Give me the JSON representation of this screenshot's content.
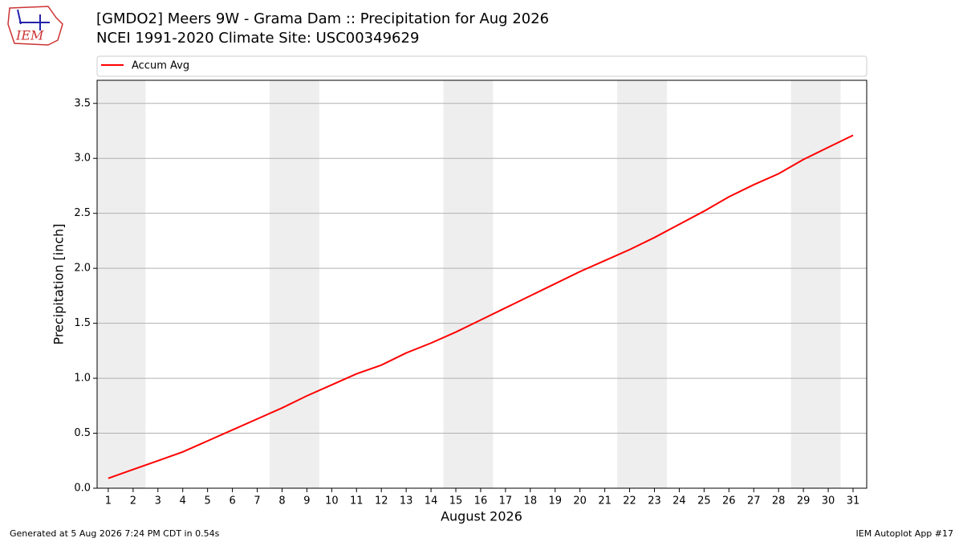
{
  "logo": "IEM",
  "footer": {
    "left": "Generated at 5 Aug 2026 7:24 PM CDT in 0.54s",
    "right": "IEM Autoplot App #17"
  },
  "chart_data": {
    "type": "line",
    "title": "[GMDO2] Meers 9W - Grama Dam :: Precipitation for Aug 2026",
    "subtitle": "NCEI 1991-2020 Climate Site: USC00349629",
    "x_label": "August 2026",
    "y_label": "Precipitation [inch]",
    "x": [
      1,
      2,
      3,
      4,
      5,
      6,
      7,
      8,
      9,
      10,
      11,
      12,
      13,
      14,
      15,
      16,
      17,
      18,
      19,
      20,
      21,
      22,
      23,
      24,
      25,
      26,
      27,
      28,
      29,
      30,
      31
    ],
    "series": [
      {
        "name": "Accum Avg",
        "color": "#ff0000",
        "values": [
          0.09,
          0.17,
          0.25,
          0.33,
          0.43,
          0.53,
          0.63,
          0.73,
          0.84,
          0.94,
          1.04,
          1.12,
          1.23,
          1.32,
          1.42,
          1.53,
          1.64,
          1.75,
          1.86,
          1.97,
          2.07,
          2.17,
          2.28,
          2.4,
          2.52,
          2.65,
          2.76,
          2.86,
          2.99,
          3.1,
          3.21
        ]
      }
    ],
    "shaded_spans": [
      [
        0.5,
        2.5
      ],
      [
        7.5,
        9.5
      ],
      [
        14.5,
        16.5
      ],
      [
        21.5,
        23.5
      ],
      [
        28.5,
        30.5
      ]
    ],
    "shade_color": "#eeeeee",
    "xlim": [
      0.55,
      31.55
    ],
    "ylim": [
      0,
      3.71
    ],
    "xticks": [
      1,
      2,
      3,
      4,
      5,
      6,
      7,
      8,
      9,
      10,
      11,
      12,
      13,
      14,
      15,
      16,
      17,
      18,
      19,
      20,
      21,
      22,
      23,
      24,
      25,
      26,
      27,
      28,
      29,
      30,
      31
    ],
    "yticks": [
      {
        "value": 0,
        "label": "0.0"
      },
      0.5,
      {
        "value": 1,
        "label": "1.0"
      },
      1.5,
      {
        "value": 2,
        "label": "2.0"
      },
      2.5,
      {
        "value": 3,
        "label": "3.0"
      },
      3.5
    ],
    "grid": true,
    "legend": "top"
  }
}
